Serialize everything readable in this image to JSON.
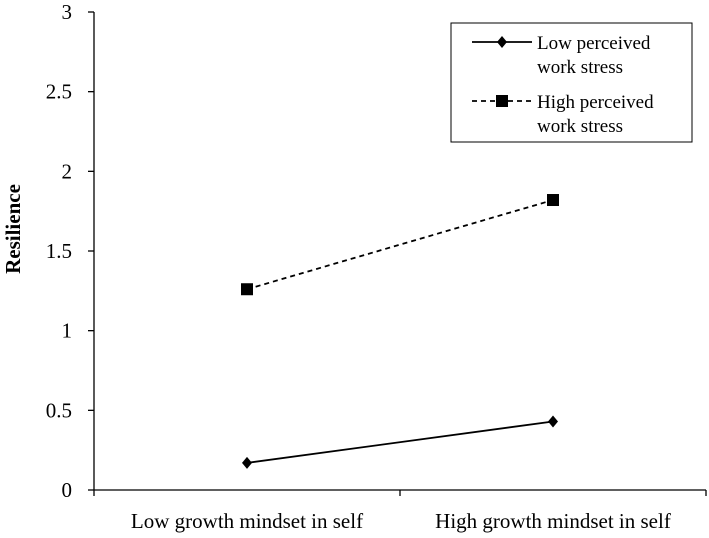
{
  "chart_data": {
    "type": "line",
    "title": "",
    "xlabel": "",
    "ylabel": "Resilience",
    "categories": [
      "Low growth mindset in self",
      "High growth mindset in self"
    ],
    "ylim": [
      0,
      3
    ],
    "yticks": [
      "0",
      "0.5",
      "1",
      "1.5",
      "2",
      "2.5",
      "3"
    ],
    "grid": false,
    "legend_position": "top-right",
    "series": [
      {
        "name": "Low perceived work stress",
        "name_lines": [
          "Low perceived",
          "work stress"
        ],
        "values": [
          0.17,
          0.43
        ],
        "marker": "diamond",
        "line_style": "solid",
        "color": "#000000"
      },
      {
        "name": "High perceived work stress",
        "name_lines": [
          "High perceived",
          "work stress"
        ],
        "values": [
          1.26,
          1.82
        ],
        "marker": "square",
        "line_style": "dashed",
        "color": "#000000"
      }
    ]
  }
}
